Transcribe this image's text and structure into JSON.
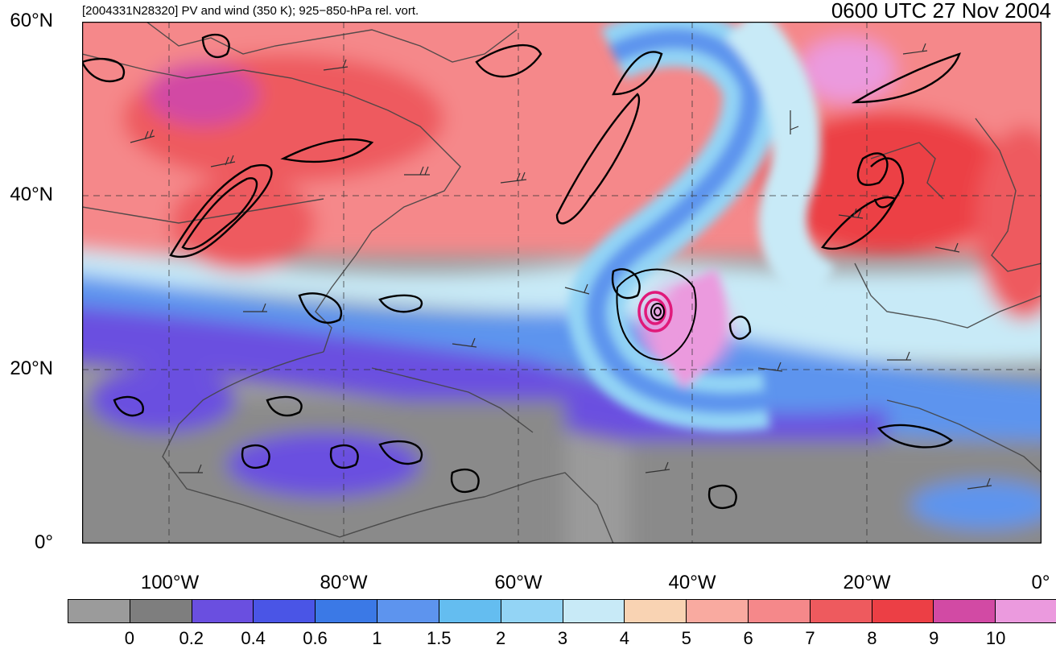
{
  "header": {
    "title_left": "[2004331N28320] PV and wind (350 K); 925−850-hPa rel. vort.",
    "title_right": "0600 UTC 27 Nov 2004"
  },
  "axes": {
    "lat_labels": [
      "60°N",
      "40°N",
      "20°N",
      "0°"
    ],
    "lon_labels": [
      "100°W",
      "80°W",
      "60°W",
      "40°W",
      "20°W",
      "0°"
    ]
  },
  "colorbar": {
    "labels": [
      "0",
      "0.2",
      "0.4",
      "0.6",
      "1",
      "1.5",
      "2",
      "3",
      "4",
      "5",
      "6",
      "7",
      "8",
      "9",
      "10"
    ],
    "colors": [
      "#9b9b9b",
      "#7e7e7e",
      "#6a4fe0",
      "#4a55e6",
      "#3b79e6",
      "#5d94ee",
      "#64bdf0",
      "#93d4f5",
      "#c8eaf7",
      "#f9d3b3",
      "#f9aaa0",
      "#f5888a",
      "#ee5a5e",
      "#ec3f45",
      "#d24aa4",
      "#eb9ade"
    ]
  },
  "map": {
    "extent": {
      "lon_min": -110,
      "lon_max": 0,
      "lat_min": 0,
      "lat_max": 60
    },
    "field_colors": {
      "land_outline": "#444444",
      "contour": "#000000",
      "storm_contour": "#e0197a"
    }
  }
}
